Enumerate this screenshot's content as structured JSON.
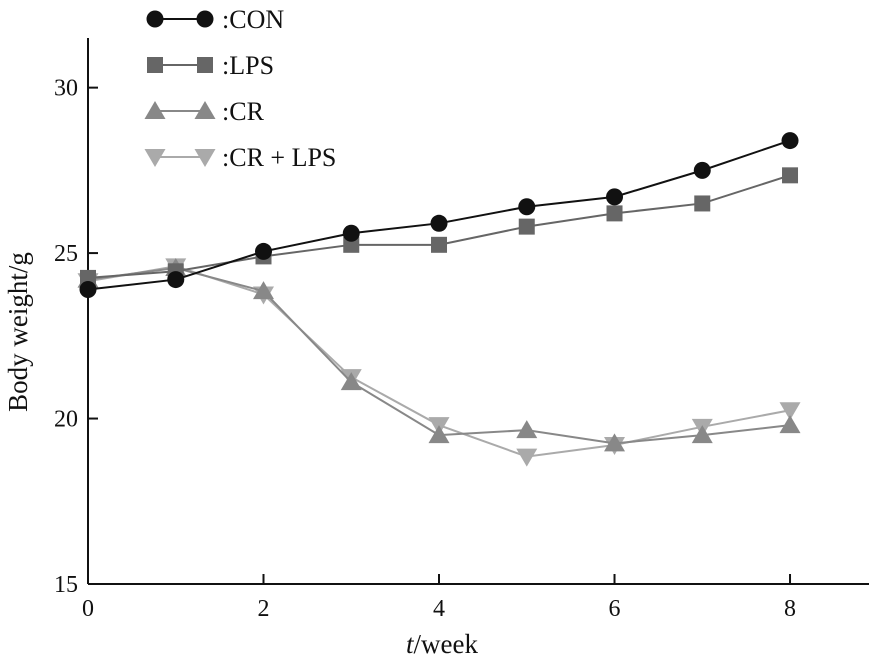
{
  "chart_data": {
    "type": "line",
    "title": "",
    "xlabel": {
      "italic": "t",
      "rest": "/week"
    },
    "ylabel": "Body weight/g",
    "x": [
      0,
      1,
      2,
      3,
      4,
      5,
      6,
      7,
      8
    ],
    "xlim": [
      0,
      8.9
    ],
    "ylim": [
      15,
      31.5
    ],
    "xticks": [
      0,
      2,
      4,
      6,
      8
    ],
    "yticks": [
      15,
      20,
      25,
      30
    ],
    "grid": false,
    "legend_position": "top-left",
    "series": [
      {
        "name": ":CON",
        "marker": "circle",
        "color": "#111111",
        "values": [
          23.9,
          24.2,
          25.05,
          25.6,
          25.9,
          26.4,
          26.7,
          27.5,
          28.4
        ]
      },
      {
        "name": ":LPS",
        "marker": "square",
        "color": "#666666",
        "values": [
          24.25,
          24.45,
          24.9,
          25.25,
          25.25,
          25.8,
          26.2,
          26.5,
          27.35
        ]
      },
      {
        "name": ":CR",
        "marker": "triangle-up",
        "color": "#888888",
        "values": [
          24.2,
          24.55,
          23.85,
          21.1,
          19.5,
          19.65,
          19.25,
          19.5,
          19.8
        ]
      },
      {
        "name": ":CR + LPS",
        "marker": "triangle-down",
        "color": "#aaaaaa",
        "values": [
          24.15,
          24.6,
          23.75,
          21.25,
          19.8,
          18.85,
          19.2,
          19.75,
          20.25
        ]
      }
    ]
  }
}
